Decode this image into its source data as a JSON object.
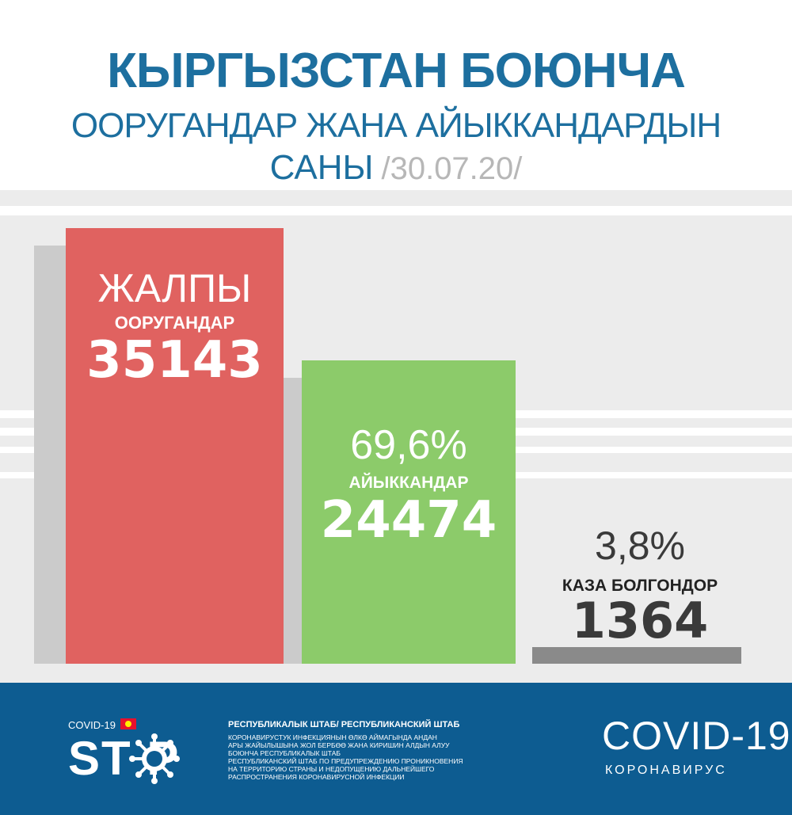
{
  "header": {
    "line1": "КЫРГЫЗСТАН БОЮНЧА",
    "line2": "ООРУГАНДАР ЖАНА АЙЫККАНДАРДЫН",
    "line3": "САНЫ",
    "date": "/30.07.20/"
  },
  "chart_data": {
    "type": "bar",
    "categories": [
      "ЖАЛПЫ ООРУГАНДАР",
      "АЙЫККАНДАР",
      "КАЗА БОЛГОНДОР"
    ],
    "values": [
      35143,
      24474,
      1364
    ],
    "bars": [
      {
        "heading": "ЖАЛПЫ",
        "label": "ООРУГАНДАР",
        "value_text": "35143",
        "value": 35143,
        "color": "#e06260"
      },
      {
        "heading": "69,6%",
        "label": "АЙЫККАНДАР",
        "value_text": "24474",
        "value": 24474,
        "color": "#8ccb6a"
      },
      {
        "heading": "3,8%",
        "label": "КАЗА БОЛГОНДОР",
        "value_text": "1364",
        "value": 1364,
        "color": "#8a8a8a"
      }
    ],
    "ylim": [
      0,
      35143
    ]
  },
  "footer": {
    "covid_small": "COVID-19",
    "stop": "ST P",
    "hq_title": "РЕСПУБЛИКАЛЫК ШТАБ/ РЕСПУБЛИКАНСКИЙ ШТАБ",
    "desc_ky_1": "КОРОНАВИРУСТУК ИНФЕКЦИЯНЫН ӨЛКӨ АЙМАГЫНДА АНДАН",
    "desc_ky_2": "АРЫ ЖАЙЫЛЫШЫНА ЖОЛ БЕРБӨӨ ЖАНА КИРИШИН АЛДЫН АЛУУ",
    "desc_ky_3": "БОЮНЧА РЕСПУБЛИКАЛЫК ШТАБ",
    "desc_ru_1": "РЕСПУБЛИКАНСКИЙ ШТАБ ПО ПРЕДУПРЕЖДЕНИЮ ПРОНИКНОВЕНИЯ",
    "desc_ru_2": "НА ТЕРРИТОРИЮ СТРАНЫ И НЕДОПУЩЕНИЮ ДАЛЬНЕЙШЕГО",
    "desc_ru_3": "РАСПРОСТРАНЕНИЯ КОРОНАВИРУСНОЙ ИНФЕКЦИИ",
    "covid_big": "COVID-19",
    "coronavirus": "КОРОНАВИРУС"
  }
}
